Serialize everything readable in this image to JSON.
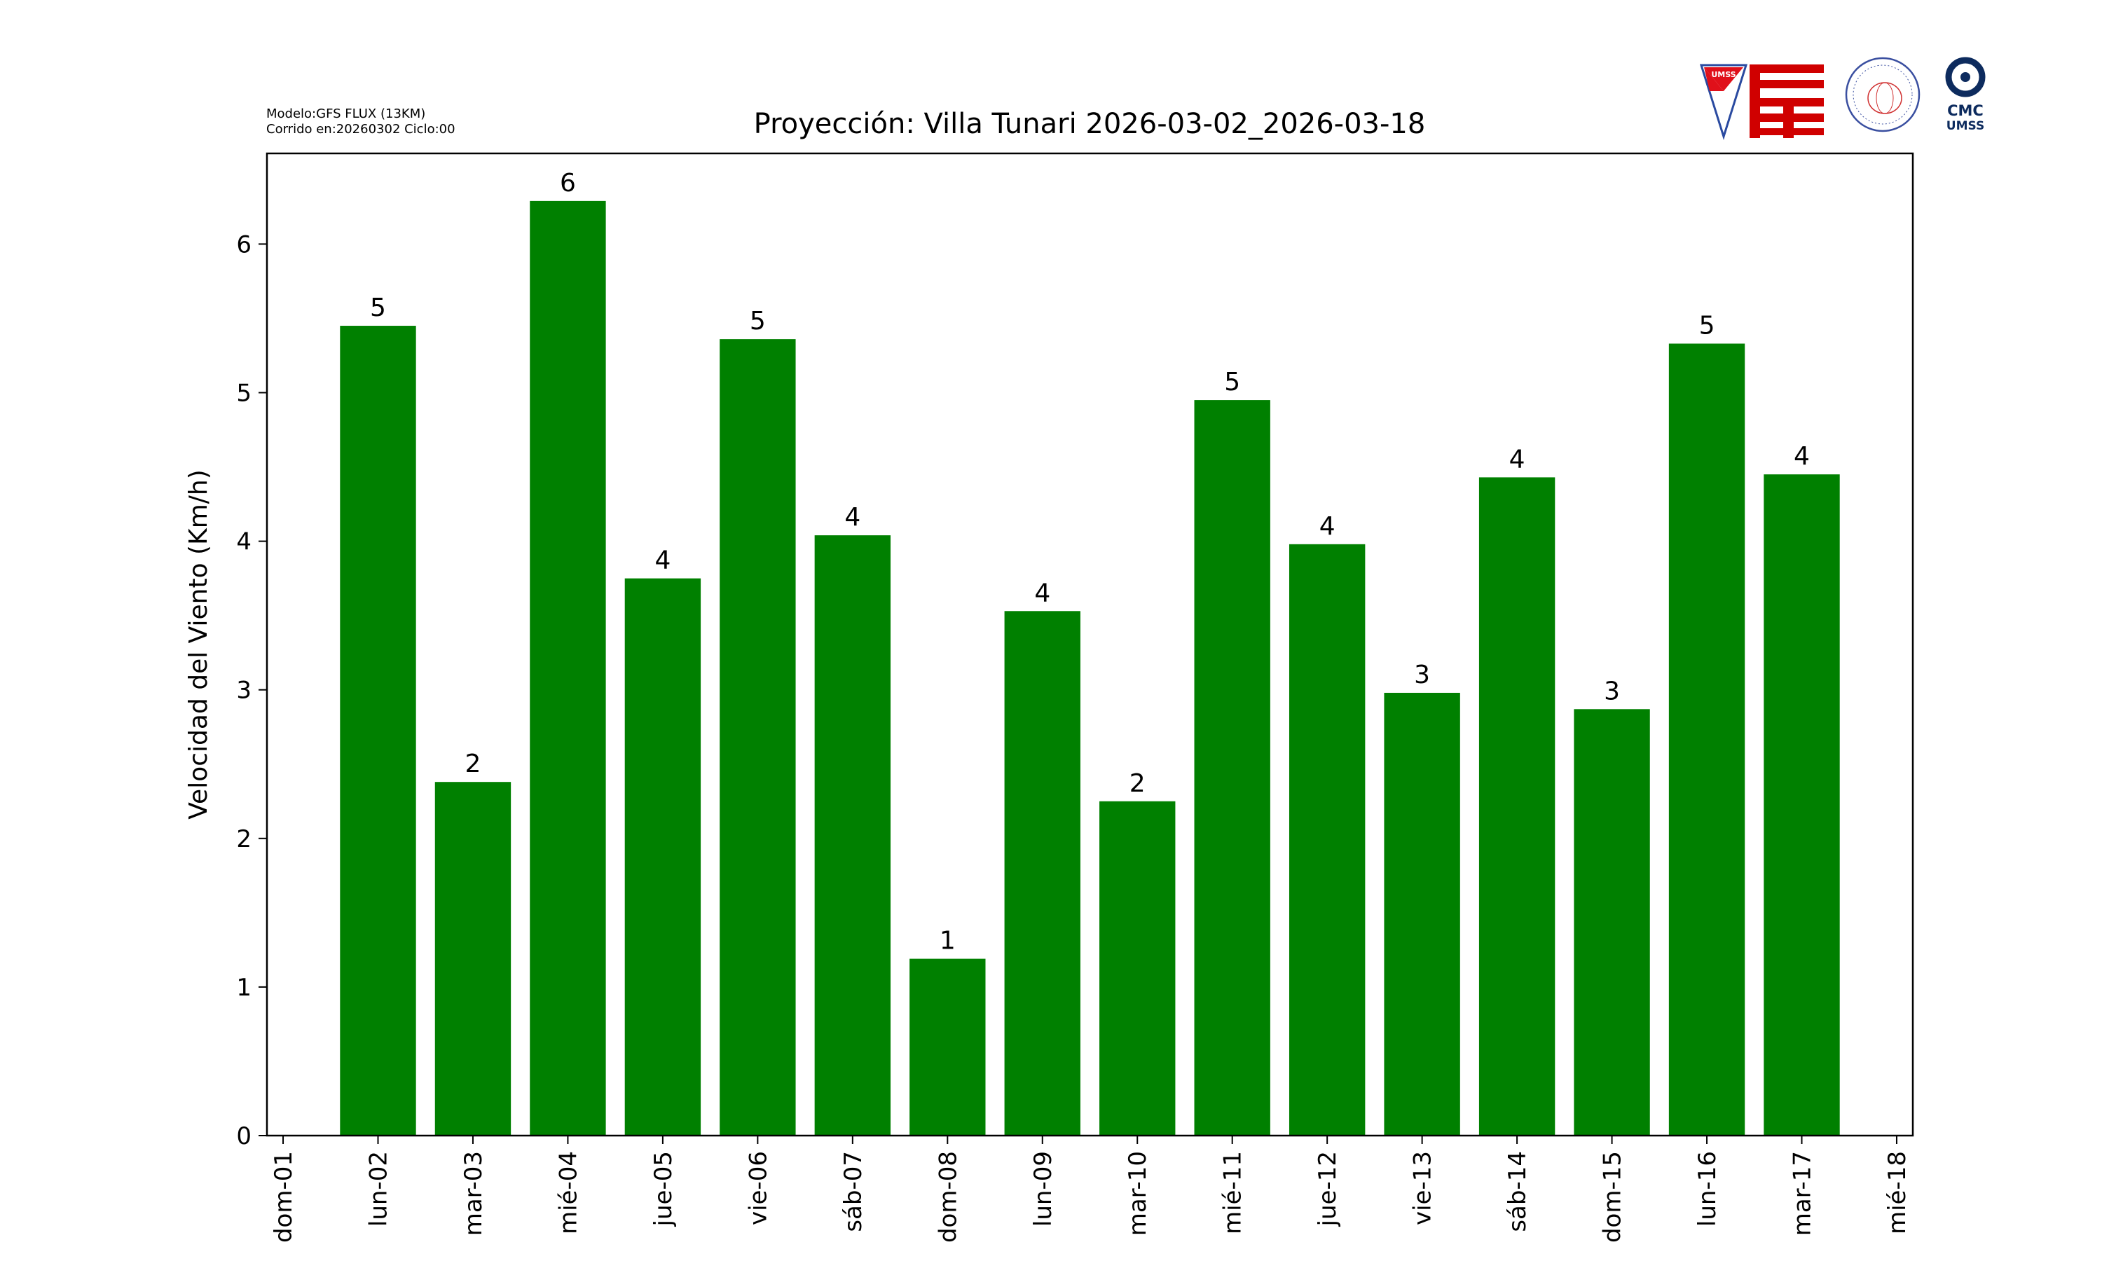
{
  "header": {
    "model_line": "Modelo:GFS FLUX (13KM)",
    "run_line": "Corrido en:20260302 Ciclo:00",
    "logos": [
      {
        "name": "umss-shield-logo",
        "text": "UMSS"
      },
      {
        "name": "fcyt-logo",
        "text": "FCyT"
      },
      {
        "name": "departamento-fisica-logo",
        "text": "DEPARTAMENTO DE FÍSICA FCyT-UMSS"
      },
      {
        "name": "cmc-umss-logo",
        "text": "CMC UMSS"
      }
    ]
  },
  "chart_data": {
    "type": "bar",
    "title": "Proyección: Villa Tunari  2026-03-02_2026-03-18",
    "xlabel": "",
    "ylabel": "Velocidad del Viento (Km/h)",
    "xticks": [
      "dom-01",
      "lun-02",
      "mar-03",
      "mié-04",
      "jue-05",
      "vie-06",
      "sáb-07",
      "dom-08",
      "lun-09",
      "mar-10",
      "mié-11",
      "jue-12",
      "vie-13",
      "sáb-14",
      "dom-15",
      "lun-16",
      "mar-17",
      "mié-18"
    ],
    "categories": [
      "lun-02",
      "mar-03",
      "mié-04",
      "jue-05",
      "vie-06",
      "sáb-07",
      "dom-08",
      "lun-09",
      "mar-10",
      "mié-11",
      "jue-12",
      "vie-13",
      "sáb-14",
      "dom-15",
      "lun-16",
      "mar-17"
    ],
    "values": [
      5.45,
      2.38,
      6.29,
      3.75,
      5.36,
      4.04,
      1.19,
      3.53,
      2.25,
      4.95,
      3.98,
      2.98,
      4.43,
      2.87,
      5.33,
      4.45
    ],
    "labels": [
      "5",
      "2",
      "6",
      "4",
      "5",
      "4",
      "1",
      "4",
      "2",
      "5",
      "4",
      "3",
      "4",
      "3",
      "5",
      "4"
    ],
    "yticks": [
      0,
      1,
      2,
      3,
      4,
      5,
      6
    ],
    "ylim": [
      0,
      6.61
    ],
    "xlim": [
      -0.17,
      17.17
    ],
    "bar_color": "#008000",
    "grid": false
  }
}
